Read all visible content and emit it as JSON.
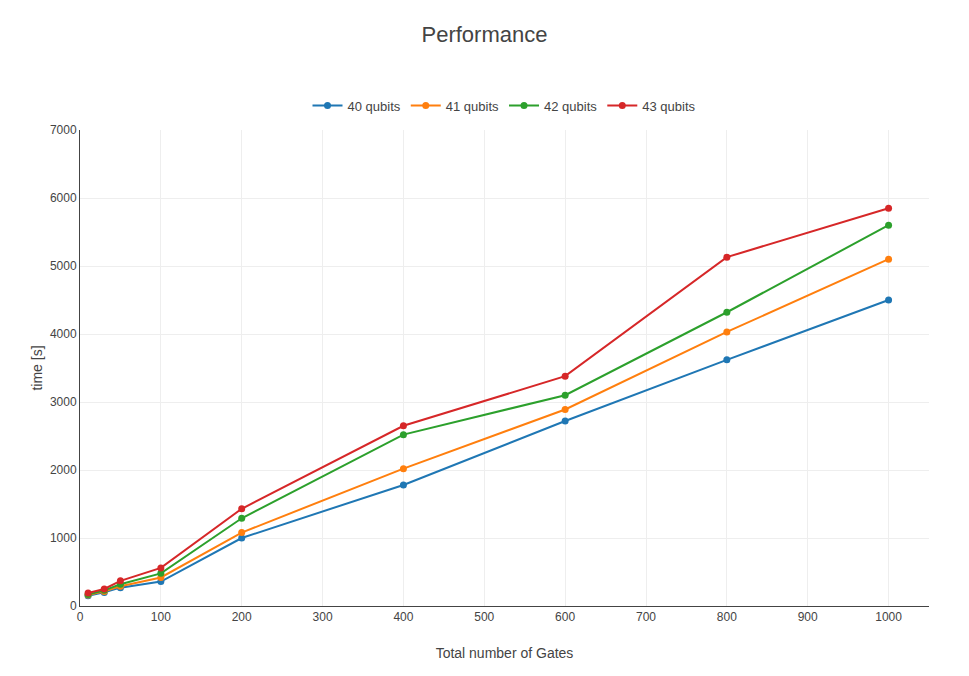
{
  "chart_data": {
    "type": "line",
    "title": "Performance",
    "x_label": "Total number of Gates",
    "y_label": "time [s]",
    "x": [
      10,
      30,
      50,
      100,
      200,
      400,
      600,
      800,
      1000
    ],
    "series": [
      {
        "name": "40 qubits",
        "values": [
          150,
          200,
          270,
          360,
          1000,
          1780,
          2720,
          3620,
          4500
        ]
      },
      {
        "name": "41 qubits",
        "values": [
          160,
          215,
          290,
          420,
          1080,
          2020,
          2890,
          4030,
          5100
        ]
      },
      {
        "name": "42 qubits",
        "values": [
          170,
          230,
          320,
          480,
          1290,
          2520,
          3100,
          4320,
          5600
        ]
      },
      {
        "name": "43 qubits",
        "values": [
          190,
          250,
          370,
          560,
          1430,
          2650,
          3380,
          5130,
          5850
        ]
      }
    ],
    "xlim": [
      0,
      1050
    ],
    "ylim": [
      0,
      7000
    ],
    "xticks": [
      0,
      100,
      200,
      300,
      400,
      500,
      600,
      700,
      800,
      900,
      1000
    ],
    "yticks": [
      0,
      1000,
      2000,
      3000,
      4000,
      5000,
      6000,
      7000
    ],
    "marker": "circle",
    "grid": true,
    "legend": "top"
  }
}
